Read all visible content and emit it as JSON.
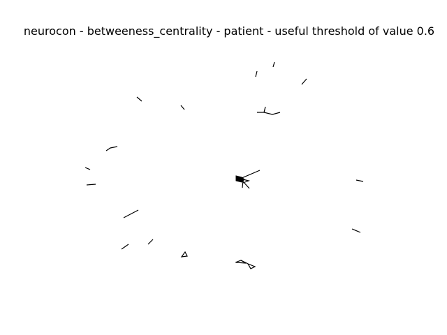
{
  "figure": {
    "title": "neurocon - betweeness_centrality - patient - useful threshold of value 0.6",
    "background": "#ffffff",
    "edge_color": "#000000"
  }
}
